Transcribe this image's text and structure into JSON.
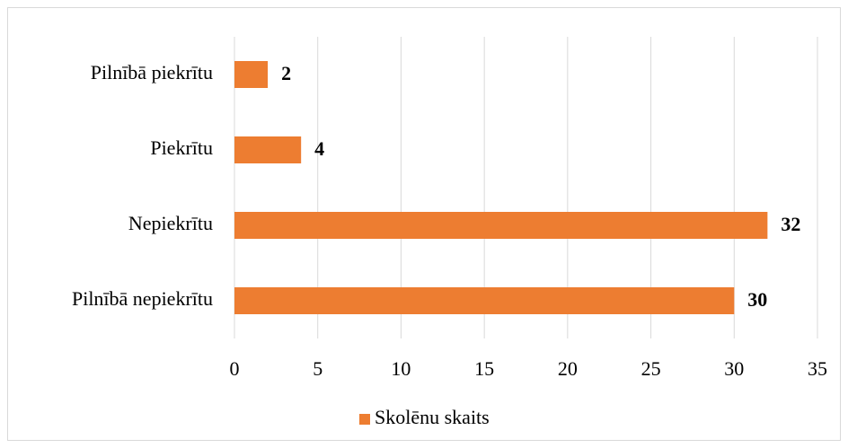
{
  "chart_data": {
    "type": "bar",
    "orientation": "horizontal",
    "categories": [
      "Pilnībā piekrītu",
      "Piekrītu",
      "Nepiekrītu",
      "Pilnībā nepiekrītu"
    ],
    "series": [
      {
        "name": "Skolēnu skaits",
        "color": "#ed7d31",
        "values": [
          2,
          4,
          32,
          30
        ]
      }
    ],
    "xlim": [
      0,
      35
    ],
    "xticks": [
      0,
      5,
      10,
      15,
      20,
      25,
      30,
      35
    ],
    "grid": true,
    "legend": "bottom"
  }
}
